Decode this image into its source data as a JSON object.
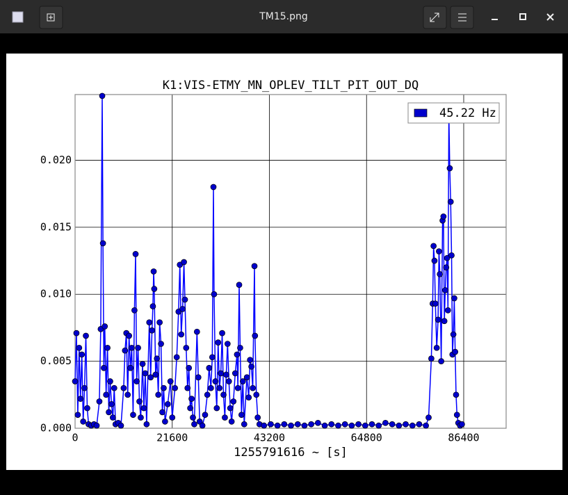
{
  "window": {
    "title": "TM15.png"
  },
  "chart_data": {
    "type": "line",
    "title": "K1:VIS-ETMY_MN_OPLEV_TILT_PIT_OUT_DQ",
    "x_label": "1255791616 ~ [s]",
    "x": [
      0,
      300,
      600,
      900,
      1200,
      1500,
      1800,
      2100,
      2400,
      2700,
      3000,
      3600,
      4200,
      4800,
      5400,
      5700,
      6030,
      6200,
      6400,
      6600,
      6900,
      7200,
      7500,
      7800,
      8100,
      8400,
      8700,
      9000,
      9600,
      10200,
      10800,
      11100,
      11400,
      11700,
      12000,
      12300,
      12600,
      12900,
      13200,
      13450,
      13700,
      14000,
      14300,
      14600,
      15000,
      15300,
      15600,
      15900,
      16500,
      16800,
      17100,
      17300,
      17470,
      17600,
      17900,
      18200,
      18500,
      18800,
      19100,
      19400,
      19700,
      20000,
      20600,
      21200,
      21600,
      22200,
      22600,
      23000,
      23300,
      23600,
      23900,
      24200,
      24420,
      24700,
      25000,
      25300,
      25600,
      25900,
      26200,
      26500,
      27100,
      27400,
      27700,
      28300,
      28900,
      29400,
      29800,
      30200,
      30500,
      30760,
      30900,
      31200,
      31500,
      31800,
      32100,
      32400,
      32700,
      33000,
      33300,
      33600,
      33900,
      34200,
      34500,
      34800,
      35200,
      35600,
      36000,
      36200,
      36480,
      36700,
      37000,
      37300,
      37600,
      38200,
      38600,
      38900,
      39200,
      39500,
      39880,
      40000,
      40300,
      40600,
      41000,
      42000,
      43500,
      45000,
      46500,
      48000,
      49500,
      51000,
      52500,
      54000,
      55500,
      57000,
      58500,
      60000,
      61500,
      63000,
      64500,
      66000,
      67500,
      69000,
      70500,
      72000,
      73500,
      75000,
      76500,
      78000,
      78600,
      79200,
      79500,
      79700,
      79900,
      80100,
      80400,
      80700,
      80900,
      81100,
      81400,
      81700,
      81900,
      82100,
      82300,
      82500,
      82700,
      82900,
      83100,
      83300,
      83500,
      83700,
      83900,
      84100,
      84300,
      84500,
      84700,
      84900,
      85200,
      85600,
      86000
    ],
    "series": [
      {
        "name": "45.22 Hz",
        "color": "#0000ff",
        "marker_color": "#0000cc",
        "values": [
          0.0035,
          0.0071,
          0.001,
          0.006,
          0.0022,
          0.0055,
          0.0005,
          0.003,
          0.0069,
          0.0015,
          0.0003,
          0.0002,
          0.0003,
          0.0002,
          0.002,
          0.0074,
          0.0248,
          0.0138,
          0.0045,
          0.0076,
          0.0025,
          0.006,
          0.0012,
          0.0035,
          0.0018,
          0.0008,
          0.003,
          0.0003,
          0.0004,
          0.0002,
          0.003,
          0.0058,
          0.0071,
          0.0025,
          0.0069,
          0.0045,
          0.006,
          0.001,
          0.0088,
          0.013,
          0.0035,
          0.006,
          0.002,
          0.0008,
          0.0048,
          0.0015,
          0.0041,
          0.0003,
          0.0079,
          0.0038,
          0.0073,
          0.0091,
          0.0117,
          0.0104,
          0.004,
          0.0052,
          0.0025,
          0.0079,
          0.0063,
          0.0012,
          0.003,
          0.0005,
          0.0018,
          0.0035,
          0.0008,
          0.003,
          0.0053,
          0.0087,
          0.0122,
          0.007,
          0.0089,
          0.0124,
          0.0096,
          0.006,
          0.003,
          0.0045,
          0.0015,
          0.0022,
          0.0008,
          0.0003,
          0.0072,
          0.0038,
          0.0005,
          0.0002,
          0.001,
          0.0025,
          0.0045,
          0.003,
          0.0053,
          0.018,
          0.01,
          0.0035,
          0.0015,
          0.0064,
          0.003,
          0.0041,
          0.0071,
          0.0025,
          0.0008,
          0.004,
          0.0063,
          0.0035,
          0.0015,
          0.0005,
          0.002,
          0.0041,
          0.0055,
          0.003,
          0.0107,
          0.006,
          0.001,
          0.0035,
          0.0003,
          0.0038,
          0.0023,
          0.0051,
          0.0046,
          0.003,
          0.0121,
          0.0069,
          0.0025,
          0.0008,
          0.0003,
          0.0002,
          0.0003,
          0.0002,
          0.0003,
          0.0002,
          0.0003,
          0.0002,
          0.0003,
          0.0004,
          0.0002,
          0.0003,
          0.0002,
          0.0003,
          0.0002,
          0.0003,
          0.0002,
          0.0003,
          0.0002,
          0.0004,
          0.0003,
          0.0002,
          0.0003,
          0.0002,
          0.0003,
          0.0002,
          0.0008,
          0.0052,
          0.0093,
          0.0136,
          0.0125,
          0.0093,
          0.006,
          0.0081,
          0.0132,
          0.0115,
          0.005,
          0.0155,
          0.0158,
          0.008,
          0.0103,
          0.012,
          0.0127,
          0.0088,
          0.0235,
          0.0194,
          0.0169,
          0.0129,
          0.0055,
          0.007,
          0.0097,
          0.0057,
          0.0025,
          0.001,
          0.0004,
          0.0002,
          0.0003
        ]
      }
    ],
    "xlim": [
      0,
      95830
    ],
    "ylim": [
      0,
      0.0249
    ],
    "xticks": [
      0,
      21600,
      43200,
      64800,
      86400
    ],
    "yticks": [
      {
        "value": 0,
        "label": "0.000"
      },
      0.005,
      {
        "value": 0.01,
        "label": "0.010"
      },
      0.015,
      {
        "value": 0.02,
        "label": "0.020"
      }
    ],
    "grid": true,
    "legend": "upper right"
  }
}
